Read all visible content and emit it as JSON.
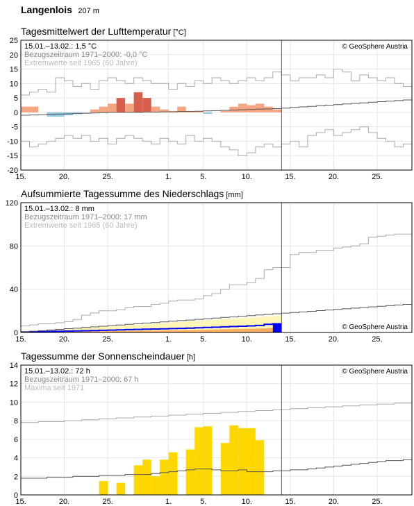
{
  "station": {
    "name": "Langenlois",
    "altitude": "207 m"
  },
  "colors": {
    "temp_warm": "#f4a582",
    "temp_warm_strong": "#d6604d",
    "temp_cold": "#92c5de",
    "precip_actual": "#0000ff",
    "precip_band_light": "#fff5b4",
    "precip_band_orange": "#fdae61",
    "sun": "#ffd700",
    "ref_line": "#555555",
    "extreme_line": "#aaaaaa",
    "grid": "#e6e6e6"
  },
  "chart_data": [
    {
      "type": "bar",
      "title": "Tagesmittelwert der Lufttemperatur",
      "unit": "[°C]",
      "summary": "15.01.–13.02.: 1,5 °C",
      "reference": "Bezugszeitraum 1971–2000: -0,0 °C",
      "extremes": "Extremwerte seit 1965 (60 Jahre)",
      "copyright": "© GeoSphere Austria",
      "xticks": [
        "15.",
        "20.",
        "25.",
        "1.",
        "5.",
        "10.",
        "15.",
        "20.",
        "25."
      ],
      "ylim": [
        -20,
        25
      ],
      "yticks": [
        "25",
        "20",
        "15",
        "10",
        "5",
        "0",
        "-5",
        "-10",
        "-15",
        "-20"
      ],
      "grid": true,
      "values": [
        2,
        2,
        0,
        -1.5,
        -1.5,
        -1,
        -0.5,
        0,
        1,
        2,
        3,
        5,
        3,
        7,
        5,
        2,
        1,
        0.5,
        2,
        0.5,
        0.5,
        -0.5,
        0,
        0.5,
        2,
        3,
        2.5,
        3,
        2,
        1
      ],
      "climatology": [
        -1,
        -0.9,
        -0.8,
        -0.7,
        -0.6,
        -0.5,
        -0.4,
        -0.3,
        -0.2,
        -0.1,
        0,
        0,
        0,
        0,
        0.1,
        0.1,
        0.2,
        0.2,
        0.3,
        0.3,
        0.4,
        0.5,
        0.6,
        0.7,
        0.8,
        0.9,
        1,
        1.1,
        1.2,
        1.3,
        1.5,
        1.7,
        1.9,
        2.1,
        2.3,
        2.5,
        2.7,
        2.9,
        3.1,
        3.3,
        3.5,
        3.7,
        3.9,
        4.1,
        4.3
      ],
      "extreme_max": [
        6,
        7,
        8,
        7,
        12,
        11,
        9,
        10,
        8,
        11,
        12,
        11,
        10,
        12,
        11,
        10,
        10,
        8,
        10,
        9,
        11,
        10,
        12,
        11,
        10,
        11,
        12,
        11,
        12,
        14,
        13,
        11,
        12,
        12,
        13,
        12,
        15,
        14,
        11,
        13,
        12,
        11,
        12,
        10,
        9
      ],
      "extreme_min": [
        -10,
        -12,
        -11,
        -10,
        -9,
        -8,
        -9,
        -8,
        -10,
        -9,
        -11,
        -9,
        -8,
        -9,
        -10,
        -11,
        -9,
        -10,
        -11,
        -8,
        -10,
        -9,
        -10,
        -12,
        -13,
        -15,
        -14,
        -12,
        -11,
        -12,
        -11,
        -10,
        -12,
        -8,
        -7,
        -6,
        -8,
        -7,
        -6,
        -5,
        -7,
        -9,
        -10,
        -12,
        -11
      ]
    },
    {
      "type": "area",
      "title": "Aufsummierte Tagessumme des Niederschlags",
      "unit": "[mm]",
      "summary": "15.01.–13.02.: 8 mm",
      "reference": "Bezugszeitraum 1971–2000: 17 mm",
      "extremes": "Extremwerte seit 1965 (60 Jahre)",
      "copyright": "© GeoSphere Austria",
      "xticks": [
        "15.",
        "20.",
        "25.",
        "1.",
        "5.",
        "10.",
        "15.",
        "20.",
        "25."
      ],
      "ylim": [
        0,
        120
      ],
      "yticks": [
        "120",
        "80",
        "40",
        "0"
      ],
      "grid": true,
      "values": [
        0.5,
        0.6,
        0.8,
        1.0,
        1.1,
        1.3,
        1.5,
        1.6,
        1.8,
        2.0,
        2.2,
        2.4,
        2.6,
        2.8,
        3.0,
        3.2,
        3.4,
        3.6,
        3.8,
        4.0,
        4.3,
        4.6,
        4.9,
        5.2,
        5.5,
        5.8,
        6.1,
        6.5,
        7.5,
        8
      ],
      "band_upper": [
        1,
        1.5,
        2,
        2.5,
        3,
        3.5,
        4,
        4.5,
        5,
        5.5,
        6,
        6.5,
        7,
        7.5,
        8,
        8.5,
        9,
        9.5,
        10,
        10.5,
        11,
        11.5,
        12,
        12.5,
        13,
        13.5,
        14,
        14.5,
        15,
        16
      ],
      "band_orange": [
        0.3,
        0.4,
        0.5,
        0.6,
        0.7,
        0.8,
        0.9,
        1.0,
        1.1,
        1.2,
        1.3,
        1.4,
        1.5,
        1.6,
        1.7,
        1.8,
        1.9,
        2.0,
        2.1,
        2.2,
        2.4,
        2.6,
        2.8,
        3.0,
        3.2,
        3.4,
        3.6,
        3.8,
        4.2,
        4.8
      ],
      "climatology": [
        0.6,
        1.2,
        1.7,
        2.3,
        2.9,
        3.5,
        4.0,
        4.6,
        5.2,
        5.8,
        6.4,
        6.9,
        7.5,
        8.1,
        8.7,
        9.2,
        9.8,
        10.4,
        11.0,
        11.5,
        12.1,
        12.7,
        13.3,
        13.9,
        14.4,
        15.0,
        15.6,
        16.2,
        16.7,
        17.3,
        17.9,
        18.5,
        19.0,
        19.6,
        20.2,
        20.8,
        21.3,
        21.9,
        22.5,
        23.1,
        23.7,
        24.2,
        24.8,
        25.4,
        26.0
      ],
      "extreme_max": [
        6,
        7,
        8,
        8,
        9,
        10,
        12,
        16,
        18,
        20,
        20,
        21,
        23,
        24,
        24,
        26,
        27,
        29,
        30,
        30,
        31,
        34,
        36,
        40,
        44,
        44,
        46,
        50,
        58,
        60,
        60,
        72,
        74,
        74,
        76,
        76,
        78,
        79,
        80,
        82,
        88,
        89,
        90,
        91,
        91
      ]
    },
    {
      "type": "bar",
      "title": "Tagessumme der Sonnenscheindauer",
      "unit": "[h]",
      "summary": "15.01.–13.02.: 72 h",
      "reference": "Bezugszeitraum 1971–2000: 67 h",
      "extremes": "Maxima seit 1971",
      "copyright": "© GeoSphere Austria",
      "xticks": [
        "15.",
        "20.",
        "25.",
        "1.",
        "5.",
        "10.",
        "15.",
        "20.",
        "25."
      ],
      "ylim": [
        0,
        14
      ],
      "yticks": [
        "14",
        "12",
        "10",
        "8",
        "6",
        "4",
        "2",
        "0"
      ],
      "grid": true,
      "values": [
        0,
        0,
        0,
        0,
        0,
        0,
        0,
        0,
        0,
        1.5,
        0,
        1.3,
        0,
        3.2,
        3.8,
        2,
        3.8,
        4.6,
        0,
        4.9,
        7.3,
        7.4,
        0,
        5.6,
        7.5,
        7.2,
        7.2,
        5.9,
        0,
        0
      ],
      "climatology": [
        1.8,
        1.8,
        1.8,
        1.9,
        1.9,
        1.9,
        2.0,
        2.0,
        2.0,
        2.1,
        2.1,
        2.1,
        2.2,
        2.2,
        2.2,
        2.3,
        2.4,
        2.5,
        2.6,
        2.7,
        2.8,
        2.8,
        2.7,
        2.6,
        2.6,
        2.7,
        2.5,
        2.5,
        2.5,
        2.6,
        2.6,
        2.7,
        2.7,
        2.8,
        2.9,
        3.0,
        3.1,
        3.2,
        3.3,
        3.4,
        3.5,
        3.6,
        3.7,
        3.7,
        3.8
      ],
      "extreme_max": [
        7.8,
        7.8,
        7.9,
        7.9,
        7.9,
        8.0,
        8.0,
        8.1,
        8.1,
        8.2,
        8.2,
        8.3,
        8.3,
        8.4,
        8.4,
        8.5,
        8.5,
        8.6,
        8.6,
        8.7,
        8.7,
        8.8,
        8.8,
        8.9,
        8.9,
        9.0,
        9.0,
        9.1,
        9.1,
        9.2,
        9.2,
        9.3,
        9.3,
        9.4,
        9.4,
        9.5,
        9.5,
        9.6,
        9.6,
        9.7,
        9.7,
        9.8,
        9.8,
        9.9,
        9.9
      ]
    }
  ]
}
